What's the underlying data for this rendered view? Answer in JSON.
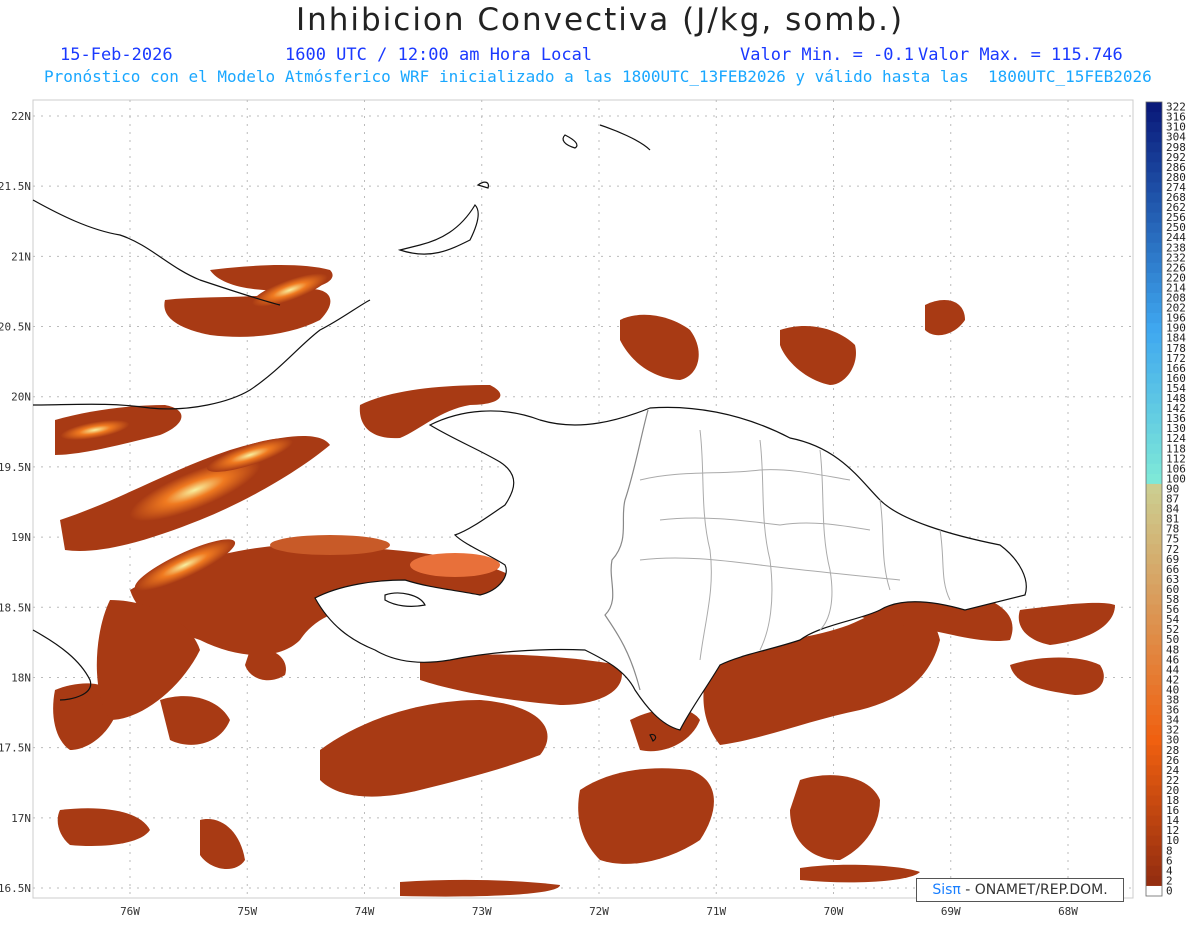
{
  "header": {
    "title": "Inhibicion Convectiva (J/kg, somb.)",
    "date": "15-Feb-2026",
    "time": "1600 UTC / 12:00 am Hora Local",
    "valor_min": "Valor Min. = -0.1",
    "valor_max": "Valor Max. = 115.746",
    "subtitle": "Pronóstico con el Modelo Atmósferico WRF inicializado a las 1800UTC_13FEB2026 y válido hasta las  1800UTC_15FEB2026"
  },
  "map_axes": {
    "lat_labels": [
      "22N",
      "21.5N",
      "21N",
      "20.5N",
      "20N",
      "19.5N",
      "19N",
      "18.5N",
      "18N",
      "17.5N",
      "17N",
      "16.5N"
    ],
    "lat_values": [
      22,
      21.5,
      21,
      20.5,
      20,
      19.5,
      19,
      18.5,
      18,
      17.5,
      17,
      16.5
    ],
    "lon_labels": [
      "76W",
      "75W",
      "74W",
      "73W",
      "72W",
      "71W",
      "70W",
      "69W",
      "68W"
    ],
    "lon_values": [
      -76,
      -75,
      -74,
      -73,
      -72,
      -71,
      -70,
      -69,
      -68
    ],
    "grid": true
  },
  "colorbar": {
    "labels": [
      "322",
      "316",
      "310",
      "304",
      "298",
      "292",
      "286",
      "280",
      "274",
      "268",
      "262",
      "256",
      "250",
      "244",
      "238",
      "232",
      "226",
      "220",
      "214",
      "208",
      "202",
      "196",
      "190",
      "184",
      "178",
      "172",
      "166",
      "160",
      "154",
      "148",
      "142",
      "136",
      "130",
      "124",
      "118",
      "112",
      "106",
      "100",
      "90",
      "87",
      "84",
      "81",
      "78",
      "75",
      "72",
      "69",
      "66",
      "63",
      "60",
      "58",
      "56",
      "54",
      "52",
      "50",
      "48",
      "46",
      "44",
      "42",
      "40",
      "38",
      "36",
      "34",
      "32",
      "30",
      "28",
      "26",
      "24",
      "22",
      "20",
      "18",
      "16",
      "14",
      "12",
      "10",
      "8",
      "6",
      "4",
      "2",
      "0"
    ],
    "colors": {
      "high": "#0a1a7a",
      "mid": "#3fa8f0",
      "cyan": "#7ee8d8",
      "pale": "#c8dca0",
      "tan": "#d8a060",
      "orange": "#f06010",
      "brown": "#8e2a10",
      "zero": "#ffffff"
    }
  },
  "credit": {
    "sis": "Sisπ",
    "org": " - ONAMET/REP.DOM."
  }
}
